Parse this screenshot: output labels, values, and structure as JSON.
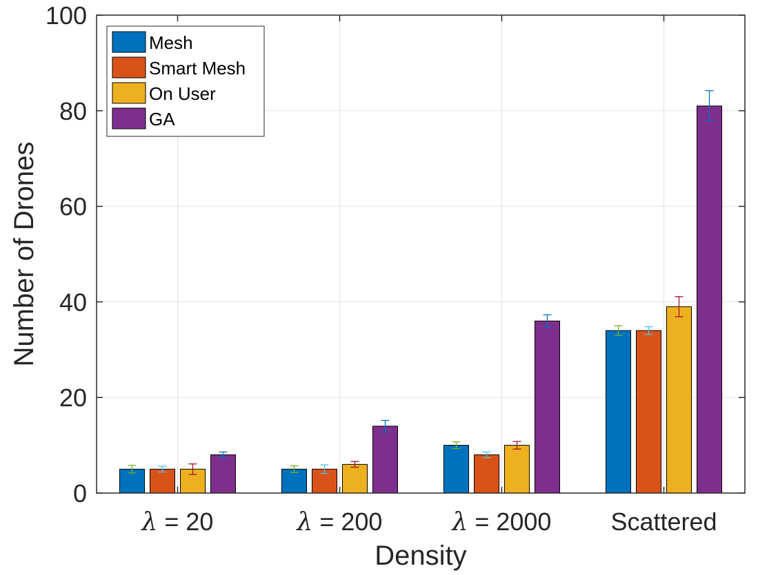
{
  "chart_data": {
    "type": "bar",
    "title": "",
    "xlabel": "Density",
    "ylabel": "Number of Drones",
    "ylim": [
      0,
      100
    ],
    "yticks": [
      0,
      20,
      40,
      60,
      80,
      100
    ],
    "grid": true,
    "legend_position": "top-left",
    "categories": [
      {
        "symbol": "λ",
        "text": " = 20"
      },
      {
        "symbol": "λ",
        "text": " = 200"
      },
      {
        "symbol": "λ",
        "text": " = 2000"
      },
      {
        "symbol": "",
        "text": "Scattered"
      }
    ],
    "series": [
      {
        "name": "Mesh",
        "color": "#0072BD",
        "error_color": "#77AC30",
        "values": [
          5,
          5,
          10,
          34
        ],
        "errors": [
          0.8,
          0.7,
          0.7,
          1.0
        ]
      },
      {
        "name": "Smart Mesh",
        "color": "#D95319",
        "error_color": "#4DBEEE",
        "values": [
          5,
          5,
          8,
          34
        ],
        "errors": [
          0.6,
          0.9,
          0.6,
          0.8
        ]
      },
      {
        "name": "On User",
        "color": "#EDB120",
        "error_color": "#A2142F",
        "values": [
          5,
          6,
          10,
          39
        ],
        "errors": [
          1.1,
          0.6,
          0.8,
          2.1
        ]
      },
      {
        "name": "GA",
        "color": "#7E2F8E",
        "error_color": "#0072BD",
        "values": [
          8,
          14,
          36,
          81
        ],
        "errors": [
          0.6,
          1.2,
          1.3,
          3.2
        ]
      }
    ]
  }
}
